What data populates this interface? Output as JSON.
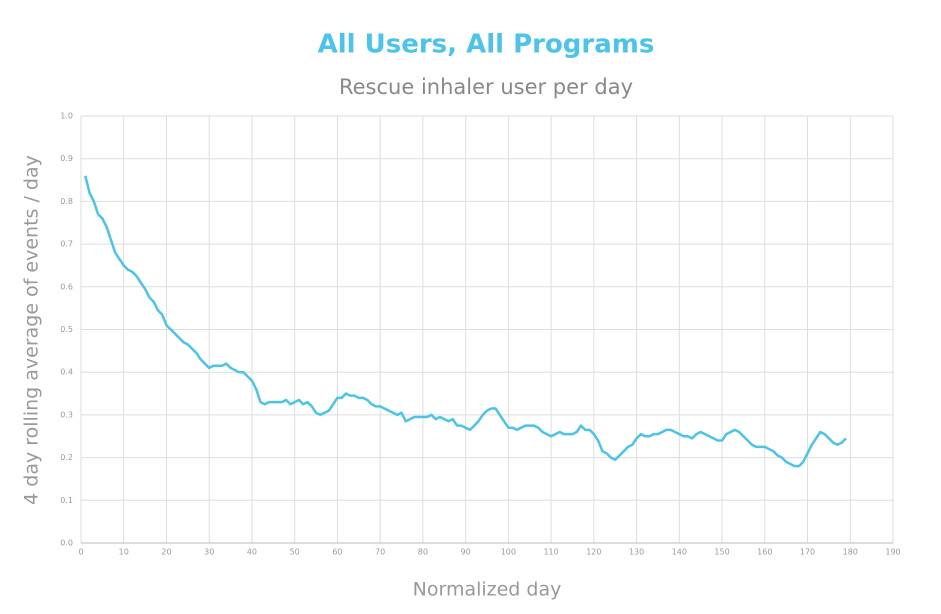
{
  "chart_data": {
    "type": "line",
    "title": "All Users, All Programs",
    "subtitle": "Rescue inhaler user per day",
    "x_label": "Normalized day",
    "y_label": "4 day rolling average of events / day",
    "grid": true,
    "xlim": [
      0,
      190
    ],
    "ylim": [
      0,
      1
    ],
    "xticks": [
      0,
      10,
      20,
      30,
      40,
      50,
      60,
      70,
      80,
      90,
      100,
      110,
      120,
      130,
      140,
      150,
      160,
      170,
      180,
      190
    ],
    "yticks": [
      {
        "value": 0,
        "label": "0.0"
      },
      0.1,
      0.2,
      0.3,
      0.4,
      0.5,
      0.6,
      0.7,
      0.8,
      0.9,
      {
        "value": 1,
        "label": "1.0"
      }
    ],
    "x": [
      1,
      2,
      3,
      4,
      5,
      6,
      7,
      8,
      9,
      10,
      11,
      12,
      13,
      14,
      15,
      16,
      17,
      18,
      19,
      20,
      21,
      22,
      23,
      24,
      25,
      26,
      27,
      28,
      29,
      30,
      31,
      32,
      33,
      34,
      35,
      36,
      37,
      38,
      39,
      40,
      41,
      42,
      43,
      44,
      45,
      46,
      47,
      48,
      49,
      50,
      51,
      52,
      53,
      54,
      55,
      56,
      57,
      58,
      59,
      60,
      61,
      62,
      63,
      64,
      65,
      66,
      67,
      68,
      69,
      70,
      71,
      72,
      73,
      74,
      75,
      76,
      77,
      78,
      79,
      80,
      81,
      82,
      83,
      84,
      85,
      86,
      87,
      88,
      89,
      90,
      91,
      92,
      93,
      94,
      95,
      96,
      97,
      98,
      99,
      100,
      101,
      102,
      103,
      104,
      105,
      106,
      107,
      108,
      109,
      110,
      111,
      112,
      113,
      114,
      115,
      116,
      117,
      118,
      119,
      120,
      121,
      122,
      123,
      124,
      125,
      126,
      127,
      128,
      129,
      130,
      131,
      132,
      133,
      134,
      135,
      136,
      137,
      138,
      139,
      140,
      141,
      142,
      143,
      144,
      145,
      146,
      147,
      148,
      149,
      150,
      151,
      152,
      153,
      154,
      155,
      156,
      157,
      158,
      159,
      160,
      161,
      162,
      163,
      164,
      165,
      166,
      167,
      168,
      169,
      170,
      171,
      172,
      173,
      174,
      175,
      176,
      177,
      178,
      179
    ],
    "series": [
      {
        "name": "Rescue inhaler",
        "color": "#4cc3e8",
        "values": [
          0.86,
          0.82,
          0.8,
          0.77,
          0.76,
          0.74,
          0.71,
          0.68,
          0.665,
          0.65,
          0.64,
          0.635,
          0.625,
          0.61,
          0.595,
          0.575,
          0.565,
          0.545,
          0.535,
          0.51,
          0.5,
          0.49,
          0.48,
          0.47,
          0.465,
          0.455,
          0.445,
          0.43,
          0.42,
          0.41,
          0.415,
          0.415,
          0.415,
          0.42,
          0.41,
          0.405,
          0.4,
          0.4,
          0.39,
          0.38,
          0.36,
          0.33,
          0.325,
          0.33,
          0.33,
          0.33,
          0.33,
          0.335,
          0.325,
          0.33,
          0.335,
          0.325,
          0.33,
          0.32,
          0.305,
          0.3,
          0.305,
          0.31,
          0.325,
          0.34,
          0.34,
          0.35,
          0.345,
          0.345,
          0.34,
          0.34,
          0.335,
          0.325,
          0.32,
          0.32,
          0.315,
          0.31,
          0.305,
          0.3,
          0.305,
          0.285,
          0.29,
          0.295,
          0.295,
          0.295,
          0.295,
          0.3,
          0.29,
          0.295,
          0.29,
          0.285,
          0.29,
          0.275,
          0.275,
          0.27,
          0.265,
          0.275,
          0.285,
          0.3,
          0.31,
          0.315,
          0.315,
          0.3,
          0.285,
          0.27,
          0.27,
          0.265,
          0.27,
          0.275,
          0.275,
          0.275,
          0.27,
          0.26,
          0.255,
          0.25,
          0.255,
          0.26,
          0.255,
          0.255,
          0.255,
          0.26,
          0.275,
          0.265,
          0.265,
          0.255,
          0.24,
          0.215,
          0.21,
          0.2,
          0.195,
          0.205,
          0.215,
          0.225,
          0.23,
          0.245,
          0.255,
          0.25,
          0.25,
          0.255,
          0.255,
          0.26,
          0.265,
          0.265,
          0.26,
          0.255,
          0.25,
          0.25,
          0.245,
          0.255,
          0.26,
          0.255,
          0.25,
          0.245,
          0.24,
          0.24,
          0.255,
          0.26,
          0.265,
          0.26,
          0.25,
          0.24,
          0.23,
          0.225,
          0.225,
          0.225,
          0.22,
          0.215,
          0.205,
          0.2,
          0.19,
          0.185,
          0.18,
          0.18,
          0.19,
          0.21,
          0.23,
          0.245,
          0.26,
          0.255,
          0.245,
          0.235,
          0.23,
          0.235,
          0.245
        ]
      }
    ]
  }
}
